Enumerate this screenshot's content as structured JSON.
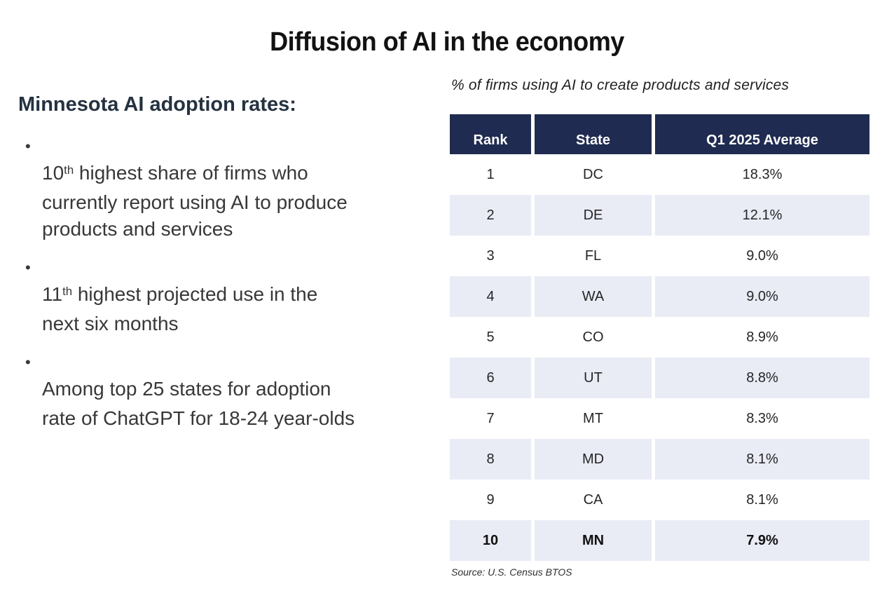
{
  "slide_title": "Diffusion of AI in the economy",
  "left": {
    "heading": "Minnesota AI adoption rates:",
    "bullet_glyph": "•",
    "bullets": [
      {
        "lead": "10",
        "sup": "th",
        "text": " highest share of firms who\ncurrently report using AI to produce\nproducts and services"
      },
      {
        "lead": "11",
        "sup": "th",
        "text": " highest projected use in the\nnext six months"
      },
      {
        "lead": "",
        "sup": "",
        "text": "Among top 25 states for adoption\nrate of ChatGPT for 18-24 year-olds"
      }
    ]
  },
  "table": {
    "caption": "% of firms using AI to create products and services",
    "columns": [
      "Rank",
      "State",
      "Q1 2025 Average"
    ],
    "rows": [
      {
        "rank": "1",
        "state": "DC",
        "value": "18.3%",
        "bold": false
      },
      {
        "rank": "2",
        "state": "DE",
        "value": "12.1%",
        "bold": false
      },
      {
        "rank": "3",
        "state": "FL",
        "value": "9.0%",
        "bold": false
      },
      {
        "rank": "4",
        "state": "WA",
        "value": "9.0%",
        "bold": false
      },
      {
        "rank": "5",
        "state": "CO",
        "value": "8.9%",
        "bold": false
      },
      {
        "rank": "6",
        "state": "UT",
        "value": "8.8%",
        "bold": false
      },
      {
        "rank": "7",
        "state": "MT",
        "value": "8.3%",
        "bold": false
      },
      {
        "rank": "8",
        "state": "MD",
        "value": "8.1%",
        "bold": false
      },
      {
        "rank": "9",
        "state": "CA",
        "value": "8.1%",
        "bold": false
      },
      {
        "rank": "10",
        "state": "MN",
        "value": "7.9%",
        "bold": true
      }
    ],
    "source": "Source: U.S. Census BTOS"
  },
  "colors": {
    "header_bg": "#1f2b50",
    "row_alt_bg": "#e9ebf5",
    "heading_text": "#253240",
    "body_text": "#383838",
    "table_text": "#262626",
    "title_text": "#121212"
  },
  "chart_data": {
    "type": "table",
    "title": "% of firms using AI to create products and services",
    "columns": [
      "Rank",
      "State",
      "Q1 2025 Average"
    ],
    "rows": [
      [
        "1",
        "DC",
        "18.3%"
      ],
      [
        "2",
        "DE",
        "12.1%"
      ],
      [
        "3",
        "FL",
        "9.0%"
      ],
      [
        "4",
        "WA",
        "9.0%"
      ],
      [
        "5",
        "CO",
        "8.9%"
      ],
      [
        "6",
        "UT",
        "8.8%"
      ],
      [
        "7",
        "MT",
        "8.3%"
      ],
      [
        "8",
        "MD",
        "8.1%"
      ],
      [
        "9",
        "CA",
        "8.1%"
      ],
      [
        "10",
        "MN",
        "7.9%"
      ]
    ],
    "source": "Source: U.S. Census BTOS"
  }
}
